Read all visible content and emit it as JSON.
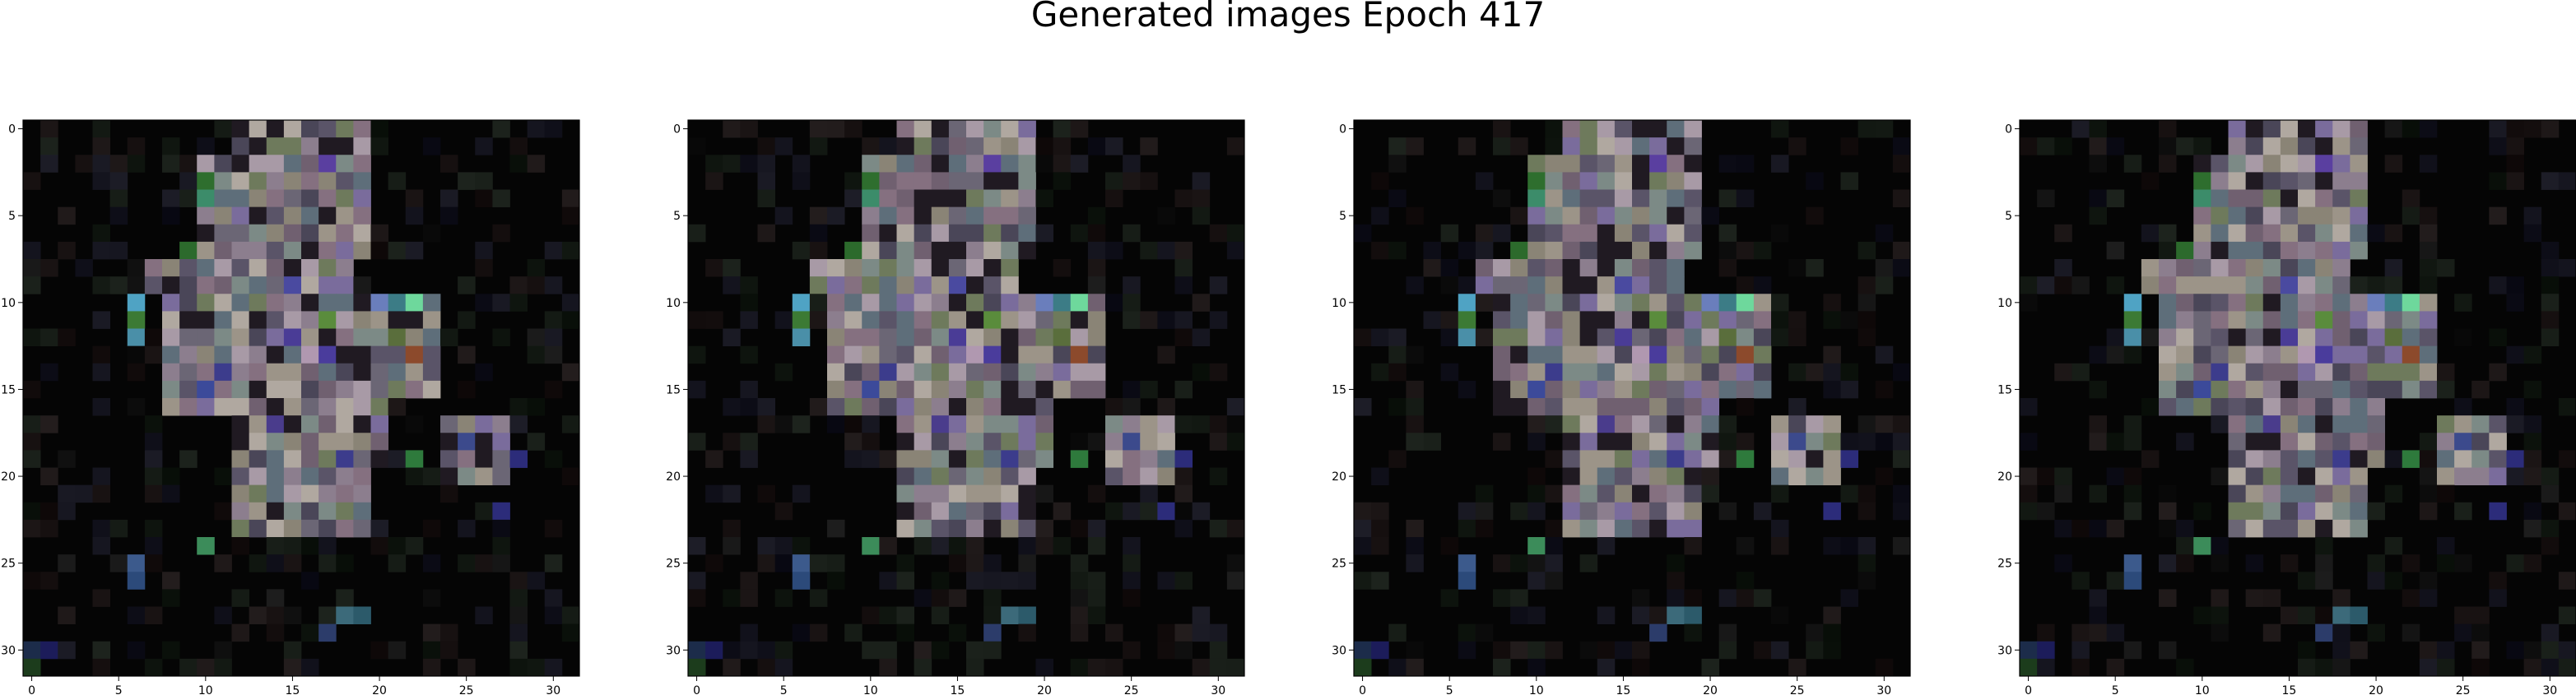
{
  "title": "Generated images Epoch 417",
  "chart_data": {
    "type": "heatmap",
    "title": "Generated images Epoch 417",
    "panels": 4,
    "grid_size": 32,
    "xlim": [
      -0.5,
      31.5
    ],
    "ylim": [
      31.5,
      -0.5
    ],
    "xticks": [
      0,
      5,
      10,
      15,
      20,
      25,
      30
    ],
    "yticks": [
      0,
      5,
      10,
      15,
      20,
      25,
      30
    ],
    "xtick_labels": [
      "0",
      "5",
      "10",
      "15",
      "20",
      "25",
      "30"
    ],
    "ytick_labels": [
      "0",
      "5",
      "10",
      "15",
      "20",
      "25",
      "30"
    ],
    "background_color": "#050505",
    "palette": [
      "#6b6675",
      "#8a8476",
      "#7c8a86",
      "#5a5468",
      "#8c7e8e",
      "#a89aa6",
      "#6e7a5c",
      "#7a6c9c",
      "#4a4658",
      "#9c9488",
      "#5e6e7a",
      "#857080",
      "#b0a8a0",
      "#706070"
    ],
    "accents": [
      {
        "row": 10,
        "col": 6,
        "color": "#4fa3c4"
      },
      {
        "row": 11,
        "col": 6,
        "color": "#3c7a34"
      },
      {
        "row": 12,
        "col": 6,
        "color": "#4a8fa8"
      },
      {
        "row": 2,
        "col": 17,
        "color": "#5a3fa0"
      },
      {
        "row": 3,
        "col": 10,
        "color": "#2e6e2e"
      },
      {
        "row": 4,
        "col": 10,
        "color": "#3c8c6a"
      },
      {
        "row": 7,
        "col": 9,
        "color": "#2c6a2c"
      },
      {
        "row": 10,
        "col": 21,
        "color": "#3c7c86"
      },
      {
        "row": 10,
        "col": 22,
        "color": "#6ed89c"
      },
      {
        "row": 10,
        "col": 20,
        "color": "#6a7ebc"
      },
      {
        "row": 12,
        "col": 21,
        "color": "#5a6e3c"
      },
      {
        "row": 13,
        "col": 22,
        "color": "#8c4a2c"
      },
      {
        "row": 13,
        "col": 17,
        "color": "#4a3c9c"
      },
      {
        "row": 13,
        "col": 16,
        "color": "#b098b0"
      },
      {
        "row": 14,
        "col": 11,
        "color": "#3c3c8c"
      },
      {
        "row": 15,
        "col": 10,
        "color": "#3c4a9a"
      },
      {
        "row": 12,
        "col": 15,
        "color": "#4a3c96"
      },
      {
        "row": 11,
        "col": 17,
        "color": "#5a8c3c"
      },
      {
        "row": 9,
        "col": 15,
        "color": "#4a4aa0"
      },
      {
        "row": 18,
        "col": 25,
        "color": "#3c4a8c"
      },
      {
        "row": 19,
        "col": 28,
        "color": "#2c2c7a"
      },
      {
        "row": 19,
        "col": 22,
        "color": "#2e7a3c"
      },
      {
        "row": 19,
        "col": 18,
        "color": "#3c3c8c"
      },
      {
        "row": 17,
        "col": 14,
        "color": "#4a3c8c"
      },
      {
        "row": 22,
        "col": 27,
        "color": "#2c2c7a"
      },
      {
        "row": 24,
        "col": 10,
        "color": "#3c8c5a"
      },
      {
        "row": 25,
        "col": 6,
        "color": "#3c5a8c"
      },
      {
        "row": 26,
        "col": 6,
        "color": "#2c4a7a"
      },
      {
        "row": 28,
        "col": 18,
        "color": "#3c6a7a"
      },
      {
        "row": 28,
        "col": 19,
        "color": "#2c5a6a"
      },
      {
        "row": 29,
        "col": 17,
        "color": "#2c3c6a"
      },
      {
        "row": 30,
        "col": 0,
        "color": "#1c2c4a"
      },
      {
        "row": 30,
        "col": 1,
        "color": "#1c1c5a"
      },
      {
        "row": 31,
        "col": 0,
        "color": "#1c3c1c"
      }
    ]
  }
}
